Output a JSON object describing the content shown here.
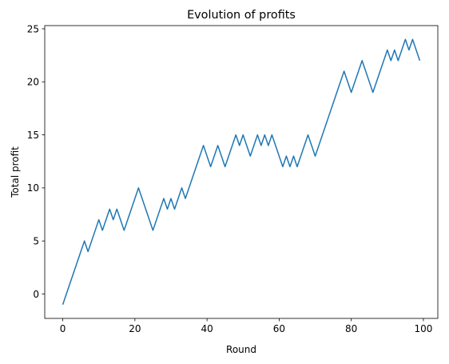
{
  "chart_data": {
    "type": "line",
    "title": "Evolution of profits",
    "xlabel": "Round",
    "ylabel": "Total profit",
    "xlim": [
      -5,
      104
    ],
    "ylim": [
      -2.3,
      25.3
    ],
    "xticks": [
      0,
      20,
      40,
      60,
      80,
      100
    ],
    "yticks": [
      0,
      5,
      10,
      15,
      20,
      25
    ],
    "grid": false,
    "line_color": "#1f77b4",
    "series": [
      {
        "x": [
          0,
          1,
          2,
          3,
          4,
          5,
          6,
          7,
          8,
          9,
          10,
          11,
          12,
          13,
          14,
          15,
          16,
          17,
          18,
          19,
          20,
          21,
          22,
          23,
          24,
          25,
          26,
          27,
          28,
          29,
          30,
          31,
          32,
          33,
          34,
          35,
          36,
          37,
          38,
          39,
          40,
          41,
          42,
          43,
          44,
          45,
          46,
          47,
          48,
          49,
          50,
          51,
          52,
          53,
          54,
          55,
          56,
          57,
          58,
          59,
          60,
          61,
          62,
          63,
          64,
          65,
          66,
          67,
          68,
          69,
          70,
          71,
          72,
          73,
          74,
          75,
          76,
          77,
          78,
          79,
          80,
          81,
          82,
          83,
          84,
          85,
          86,
          87,
          88,
          89,
          90,
          91,
          92,
          93,
          94,
          95,
          96,
          97,
          98,
          99
        ],
        "values": [
          -1,
          0,
          1,
          2,
          3,
          4,
          5,
          4,
          5,
          6,
          7,
          6,
          7,
          8,
          7,
          8,
          7,
          6,
          7,
          8,
          9,
          10,
          9,
          8,
          7,
          6,
          7,
          8,
          9,
          8,
          9,
          8,
          9,
          10,
          9,
          10,
          11,
          12,
          13,
          14,
          13,
          12,
          13,
          14,
          13,
          12,
          13,
          14,
          15,
          14,
          15,
          14,
          13,
          14,
          15,
          14,
          15,
          14,
          15,
          14,
          13,
          12,
          13,
          12,
          13,
          12,
          13,
          14,
          15,
          14,
          13,
          14,
          15,
          16,
          17,
          18,
          19,
          20,
          21,
          20,
          19,
          20,
          21,
          22,
          21,
          20,
          19,
          20,
          21,
          22,
          23,
          22,
          23,
          22,
          23,
          24,
          23,
          24,
          23,
          22
        ]
      }
    ]
  }
}
